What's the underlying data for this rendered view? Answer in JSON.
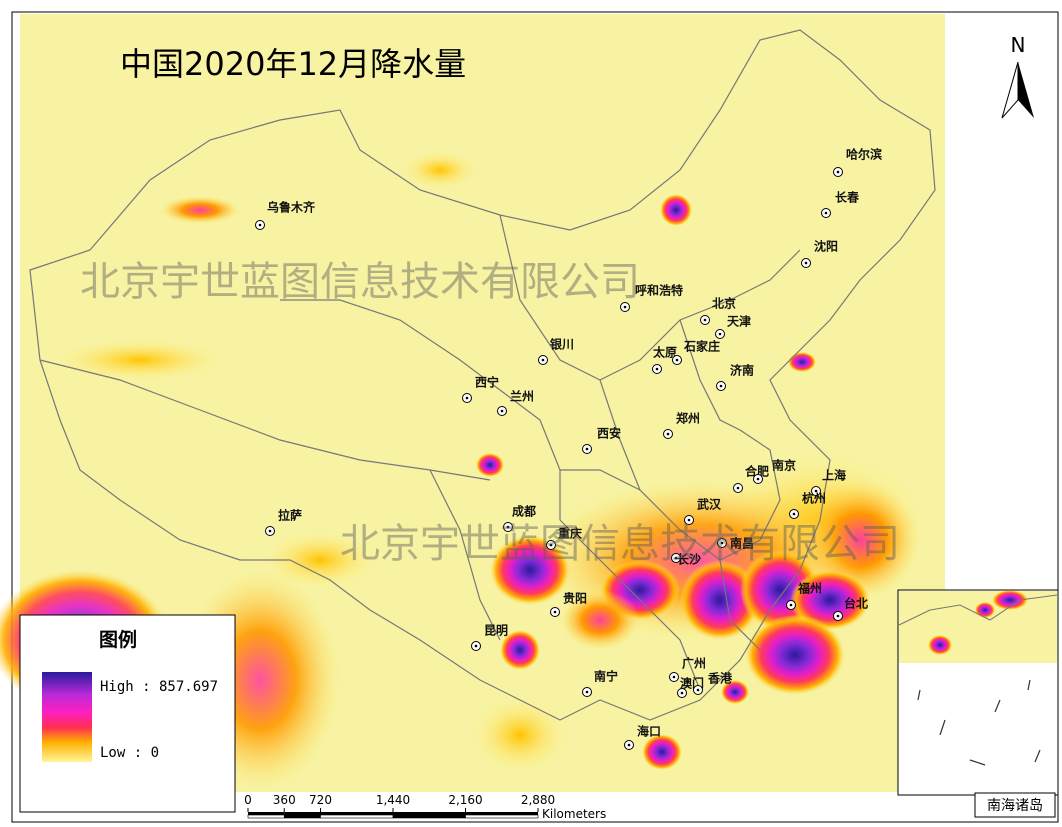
{
  "title": "中国2020年12月降水量",
  "watermarks": [
    "北京宇世蓝图信息技术有限公司",
    "北京宇世蓝图信息技术有限公司"
  ],
  "north": "N",
  "cities": [
    "乌鲁木齐",
    "哈尔滨",
    "长春",
    "沈阳",
    "呼和浩特",
    "北京",
    "天津",
    "银川",
    "太原",
    "石家庄",
    "济南",
    "西宁",
    "兰州",
    "西安",
    "郑州",
    "合肥",
    "南京",
    "上海",
    "武汉",
    "杭州",
    "成都",
    "拉萨",
    "重庆",
    "南昌",
    "长沙",
    "福州",
    "台北",
    "贵阳",
    "昆明",
    "广州",
    "南宁",
    "澳门",
    "香港",
    "海口"
  ],
  "legend": {
    "title": "图例",
    "high": "High : 857.697",
    "low": "Low : 0"
  },
  "scale": {
    "ticks": [
      0,
      360,
      720,
      {
        "value": 1440,
        "label": "1,440"
      },
      {
        "value": 2160,
        "label": "2,160"
      },
      {
        "value": 2880,
        "label": "2,880"
      }
    ],
    "unit": "Kilometers"
  },
  "inset_label": "南海诸岛"
}
